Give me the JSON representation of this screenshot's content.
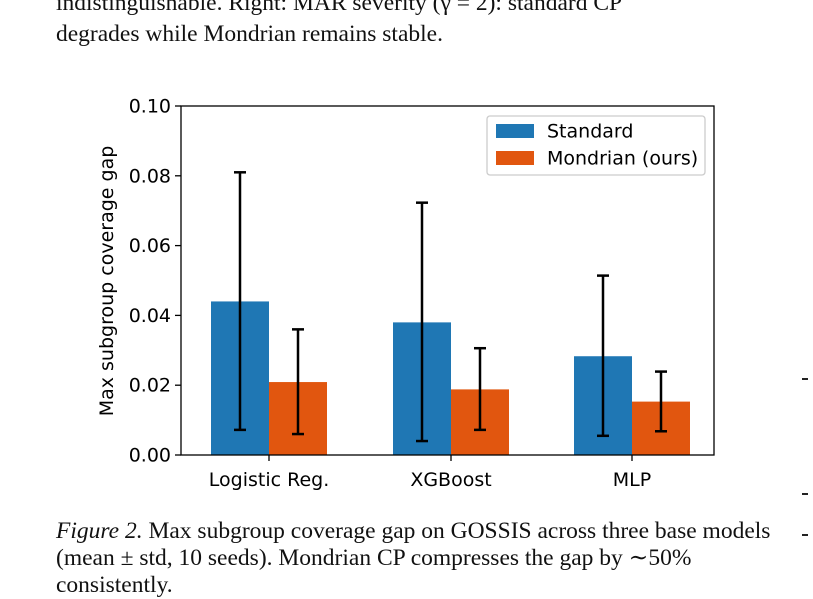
{
  "text_above": {
    "line1": "indistinguishable. Right: MAR severity (γ = 2): standard CP",
    "line2": "degrades while Mondrian remains stable."
  },
  "caption": {
    "label": "Figure 2.",
    "text": " Max subgroup coverage gap on GOSSIS across three base models (mean ± std, 10 seeds). Mondrian CP compresses the gap by ∼50% consistently."
  },
  "chart_data": {
    "type": "bar",
    "categories": [
      "Logistic Reg.",
      "XGBoost",
      "MLP"
    ],
    "series": [
      {
        "name": "Standard",
        "color": "#1f77b4",
        "values": [
          0.044,
          0.038,
          0.0283
        ],
        "error_low": [
          0.0072,
          0.004,
          0.0055
        ],
        "error_high": [
          0.081,
          0.0723,
          0.0514
        ]
      },
      {
        "name": "Mondrian (ours)",
        "color": "#e1560f",
        "values": [
          0.0209,
          0.0188,
          0.0153
        ],
        "error_low": [
          0.006,
          0.0072,
          0.0068
        ],
        "error_high": [
          0.036,
          0.0306,
          0.0239
        ]
      }
    ],
    "xlabel": "",
    "ylabel": "Max subgroup coverage gap",
    "ylim": [
      0,
      0.1
    ],
    "yticks": [
      "0.00",
      "0.02",
      "0.04",
      "0.06",
      "0.08",
      "0.10"
    ],
    "legend_position": "top-right",
    "grid": false
  }
}
